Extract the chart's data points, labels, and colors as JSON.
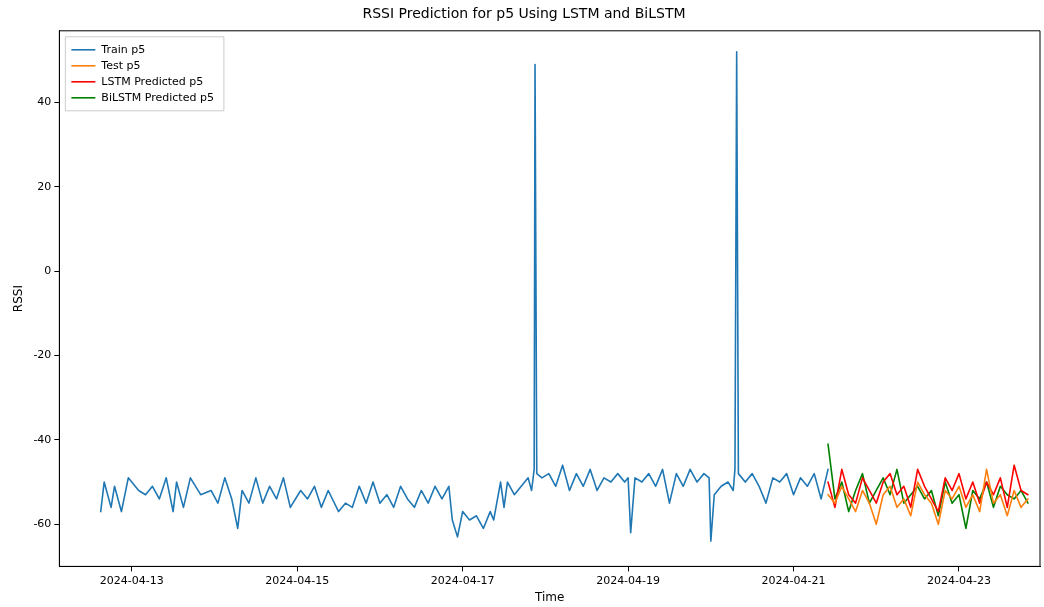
{
  "chart_data": {
    "type": "line",
    "title": "RSSI Prediction for p5 Using LSTM and BiLSTM",
    "xlabel": "Time",
    "ylabel": "RSSI",
    "xlim": [
      "2024-04-12T03:00",
      "2024-04-23T23:30"
    ],
    "xticks": [
      "2024-04-13",
      "2024-04-15",
      "2024-04-17",
      "2024-04-19",
      "2024-04-21",
      "2024-04-23"
    ],
    "ylim": [
      -70,
      57
    ],
    "yticks": [
      -60,
      -40,
      -20,
      0,
      20,
      40
    ],
    "grid": false,
    "legend": "top left",
    "marker": "none",
    "line_style": "solid",
    "series": [
      {
        "name": "Train p5",
        "color": "#1f77b4",
        "x": [
          "2024-04-12T15:00",
          "2024-04-12T16:00",
          "2024-04-12T18:00",
          "2024-04-12T19:00",
          "2024-04-12T21:00",
          "2024-04-12T23:00",
          "2024-04-13T02:00",
          "2024-04-13T04:00",
          "2024-04-13T06:00",
          "2024-04-13T08:00",
          "2024-04-13T10:00",
          "2024-04-13T12:00",
          "2024-04-13T13:00",
          "2024-04-13T15:00",
          "2024-04-13T17:00",
          "2024-04-13T20:00",
          "2024-04-13T23:00",
          "2024-04-14T01:00",
          "2024-04-14T03:00",
          "2024-04-14T05:00",
          "2024-04-14T06:45",
          "2024-04-14T08:00",
          "2024-04-14T10:00",
          "2024-04-14T12:00",
          "2024-04-14T14:00",
          "2024-04-14T16:00",
          "2024-04-14T18:00",
          "2024-04-14T20:00",
          "2024-04-14T22:00",
          "2024-04-15T01:00",
          "2024-04-15T03:00",
          "2024-04-15T05:00",
          "2024-04-15T07:00",
          "2024-04-15T09:00",
          "2024-04-15T12:00",
          "2024-04-15T14:00",
          "2024-04-15T16:00",
          "2024-04-15T18:00",
          "2024-04-15T20:00",
          "2024-04-15T22:00",
          "2024-04-16T00:00",
          "2024-04-16T02:00",
          "2024-04-16T04:00",
          "2024-04-16T06:00",
          "2024-04-16T08:00",
          "2024-04-16T10:00",
          "2024-04-16T12:00",
          "2024-04-16T14:00",
          "2024-04-16T16:00",
          "2024-04-16T18:00",
          "2024-04-16T20:00",
          "2024-04-16T21:00",
          "2024-04-16T22:30",
          "2024-04-17T00:00",
          "2024-04-17T02:00",
          "2024-04-17T04:00",
          "2024-04-17T06:00",
          "2024-04-17T08:00",
          "2024-04-17T09:00",
          "2024-04-17T11:00",
          "2024-04-17T12:00",
          "2024-04-17T13:00",
          "2024-04-17T15:00",
          "2024-04-17T17:00",
          "2024-04-17T19:00",
          "2024-04-17T20:00",
          "2024-04-17T20:45",
          "2024-04-17T21:00",
          "2024-04-17T21:30",
          "2024-04-17T23:00",
          "2024-04-18T01:00",
          "2024-04-18T03:00",
          "2024-04-18T05:00",
          "2024-04-18T07:00",
          "2024-04-18T09:00",
          "2024-04-18T11:00",
          "2024-04-18T13:00",
          "2024-04-18T15:00",
          "2024-04-18T17:00",
          "2024-04-18T19:00",
          "2024-04-18T21:00",
          "2024-04-18T23:00",
          "2024-04-19T00:00",
          "2024-04-19T00:45",
          "2024-04-19T02:00",
          "2024-04-19T04:00",
          "2024-04-19T06:00",
          "2024-04-19T08:00",
          "2024-04-19T10:00",
          "2024-04-19T12:00",
          "2024-04-19T14:00",
          "2024-04-19T16:00",
          "2024-04-19T18:00",
          "2024-04-19T20:00",
          "2024-04-19T22:00",
          "2024-04-19T23:30",
          "2024-04-20T00:00",
          "2024-04-20T01:00",
          "2024-04-20T03:00",
          "2024-04-20T05:00",
          "2024-04-20T06:30",
          "2024-04-20T07:00",
          "2024-04-20T07:30",
          "2024-04-20T08:00",
          "2024-04-20T10:00",
          "2024-04-20T12:00",
          "2024-04-20T14:00",
          "2024-04-20T16:00",
          "2024-04-20T18:00",
          "2024-04-20T20:00",
          "2024-04-20T22:00",
          "2024-04-21T00:00",
          "2024-04-21T02:00",
          "2024-04-21T04:00",
          "2024-04-21T06:00",
          "2024-04-21T08:00",
          "2024-04-21T10:00"
        ],
        "values": [
          -57,
          -50,
          -56,
          -51,
          -57,
          -49,
          -52,
          -53,
          -51,
          -54,
          -49,
          -57,
          -50,
          -56,
          -49,
          -53,
          -52,
          -55,
          -49,
          -54,
          -61,
          -52,
          -55,
          -49,
          -55,
          -51,
          -54,
          -49,
          -56,
          -52,
          -54,
          -51,
          -56,
          -52,
          -57,
          -55,
          -56,
          -51,
          -55,
          -50,
          -55,
          -53,
          -56,
          -51,
          -54,
          -56,
          -52,
          -55,
          -51,
          -54,
          -51,
          -59,
          -63,
          -57,
          -59,
          -58,
          -61,
          -57,
          -59,
          -50,
          -56,
          -50,
          -53,
          -51,
          -49,
          -52,
          -47,
          49,
          -48,
          -49,
          -48,
          -51,
          -46,
          -52,
          -48,
          -51,
          -47,
          -52,
          -49,
          -50,
          -48,
          -50,
          -49,
          -62,
          -49,
          -50,
          -48,
          -51,
          -47,
          -55,
          -48,
          -51,
          -47,
          -50,
          -48,
          -49,
          -64,
          -53,
          -51,
          -50,
          -52,
          -47,
          52,
          -48,
          -50,
          -48,
          -51,
          -55,
          -49,
          -50,
          -48,
          -53,
          -49,
          -51,
          -48,
          -54,
          -47
        ]
      },
      {
        "name": "Test p5",
        "color": "#ff7f0e",
        "x": [
          "2024-04-21T10:00",
          "2024-04-21T12:00",
          "2024-04-21T14:00",
          "2024-04-21T16:00",
          "2024-04-21T18:00",
          "2024-04-21T20:00",
          "2024-04-21T22:00",
          "2024-04-22T00:00",
          "2024-04-22T02:00",
          "2024-04-22T04:00",
          "2024-04-22T06:00",
          "2024-04-22T08:00",
          "2024-04-22T10:00",
          "2024-04-22T12:00",
          "2024-04-22T14:00",
          "2024-04-22T16:00",
          "2024-04-22T18:00",
          "2024-04-22T20:00",
          "2024-04-22T22:00",
          "2024-04-23T00:00",
          "2024-04-23T02:00",
          "2024-04-23T04:00",
          "2024-04-23T06:00",
          "2024-04-23T08:00",
          "2024-04-23T10:00",
          "2024-04-23T12:00",
          "2024-04-23T14:00",
          "2024-04-23T16:00",
          "2024-04-23T18:00",
          "2024-04-23T20:00"
        ],
        "values": [
          -53,
          -55,
          -51,
          -54,
          -57,
          -52,
          -55,
          -60,
          -53,
          -51,
          -56,
          -54,
          -58,
          -50,
          -53,
          -55,
          -60,
          -52,
          -54,
          -51,
          -56,
          -53,
          -57,
          -47,
          -55,
          -53,
          -58,
          -52,
          -56,
          -54
        ]
      },
      {
        "name": "LSTM Predicted p5",
        "color": "#ff0000",
        "x": [
          "2024-04-21T10:00",
          "2024-04-21T12:00",
          "2024-04-21T14:00",
          "2024-04-21T16:00",
          "2024-04-21T18:00",
          "2024-04-21T20:00",
          "2024-04-21T22:00",
          "2024-04-22T00:00",
          "2024-04-22T02:00",
          "2024-04-22T04:00",
          "2024-04-22T06:00",
          "2024-04-22T08:00",
          "2024-04-22T10:00",
          "2024-04-22T12:00",
          "2024-04-22T14:00",
          "2024-04-22T16:00",
          "2024-04-22T18:00",
          "2024-04-22T20:00",
          "2024-04-22T22:00",
          "2024-04-23T00:00",
          "2024-04-23T02:00",
          "2024-04-23T04:00",
          "2024-04-23T06:00",
          "2024-04-23T08:00",
          "2024-04-23T10:00",
          "2024-04-23T12:00",
          "2024-04-23T14:00",
          "2024-04-23T16:00",
          "2024-04-23T18:00",
          "2024-04-23T20:00"
        ],
        "values": [
          -50,
          -56,
          -47,
          -53,
          -55,
          -49,
          -52,
          -55,
          -50,
          -48,
          -53,
          -51,
          -56,
          -47,
          -51,
          -54,
          -57,
          -49,
          -52,
          -48,
          -54,
          -50,
          -55,
          -50,
          -53,
          -49,
          -56,
          -46,
          -52,
          -53
        ]
      },
      {
        "name": "BiLSTM Predicted p5",
        "color": "#008000",
        "x": [
          "2024-04-21T10:00",
          "2024-04-21T12:00",
          "2024-04-21T14:00",
          "2024-04-21T16:00",
          "2024-04-21T18:00",
          "2024-04-21T20:00",
          "2024-04-21T22:00",
          "2024-04-22T00:00",
          "2024-04-22T02:00",
          "2024-04-22T04:00",
          "2024-04-22T06:00",
          "2024-04-22T08:00",
          "2024-04-22T10:00",
          "2024-04-22T12:00",
          "2024-04-22T14:00",
          "2024-04-22T16:00",
          "2024-04-22T18:00",
          "2024-04-22T20:00",
          "2024-04-22T22:00",
          "2024-04-23T00:00",
          "2024-04-23T02:00",
          "2024-04-23T04:00",
          "2024-04-23T06:00",
          "2024-04-23T08:00",
          "2024-04-23T10:00",
          "2024-04-23T12:00",
          "2024-04-23T14:00",
          "2024-04-23T16:00",
          "2024-04-23T18:00",
          "2024-04-23T20:00"
        ],
        "values": [
          -41,
          -54,
          -50,
          -57,
          -52,
          -48,
          -55,
          -52,
          -49,
          -53,
          -47,
          -55,
          -53,
          -51,
          -54,
          -52,
          -58,
          -50,
          -55,
          -53,
          -61,
          -52,
          -54,
          -50,
          -56,
          -51,
          -53,
          -54,
          -52,
          -55
        ]
      }
    ]
  }
}
